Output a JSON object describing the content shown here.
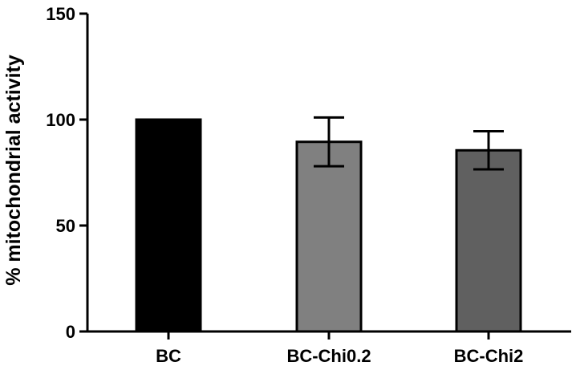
{
  "chart_data": {
    "type": "bar",
    "title": "",
    "xlabel": "",
    "ylabel": "% mitochondrial activity",
    "ylim": [
      0,
      150
    ],
    "yticks": [
      0,
      50,
      100,
      150
    ],
    "grid": false,
    "legend": "none",
    "categories": [
      "BC",
      "BC-Chi0.2",
      "BC-Chi2"
    ],
    "values": [
      100,
      89.5,
      85.5
    ],
    "error": [
      0,
      11.5,
      9
    ],
    "colors": [
      "#000000",
      "#808080",
      "#606060"
    ]
  }
}
